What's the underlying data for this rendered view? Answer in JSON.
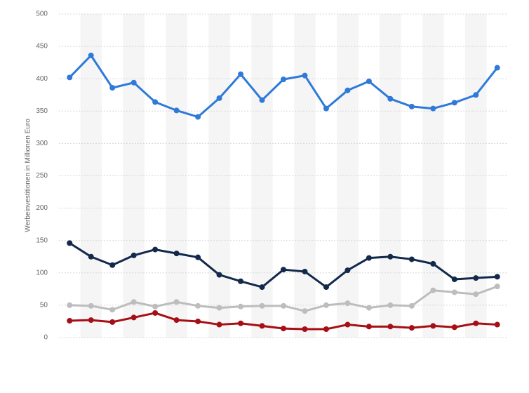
{
  "chart_data": {
    "type": "line",
    "y_label": "Werbeinvestitionen in Millionen Euro",
    "categories": [
      null,
      null,
      null,
      null,
      null,
      null,
      null,
      null,
      null,
      null,
      null,
      null,
      null,
      null,
      null,
      null,
      null,
      null,
      null,
      null,
      null
    ],
    "series": [
      {
        "color": "#2f7ad9",
        "values": [
          402,
          436,
          386,
          394,
          364,
          351,
          341,
          370,
          407,
          367,
          399,
          405,
          354,
          382,
          396,
          369,
          357,
          354,
          363,
          375,
          417
        ]
      },
      {
        "color": "#13294b",
        "values": [
          146,
          125,
          112,
          127,
          136,
          130,
          124,
          97,
          87,
          78,
          105,
          102,
          78,
          104,
          123,
          125,
          121,
          114,
          90,
          92,
          94
        ]
      },
      {
        "color": "#bdbdbd",
        "values": [
          50,
          49,
          43,
          55,
          48,
          55,
          49,
          46,
          48,
          49,
          49,
          41,
          50,
          53,
          46,
          50,
          49,
          73,
          70,
          67,
          79
        ]
      },
      {
        "color": "#a50f15",
        "values": [
          26,
          27,
          24,
          31,
          38,
          27,
          25,
          20,
          22,
          18,
          14,
          13,
          13,
          20,
          17,
          17,
          15,
          18,
          16,
          22,
          20
        ]
      }
    ],
    "ylim": [
      0,
      500
    ],
    "yticks": [
      0,
      50,
      100,
      150,
      200,
      250,
      300,
      350,
      400,
      450,
      500
    ],
    "grid": true,
    "banded_background": true
  }
}
